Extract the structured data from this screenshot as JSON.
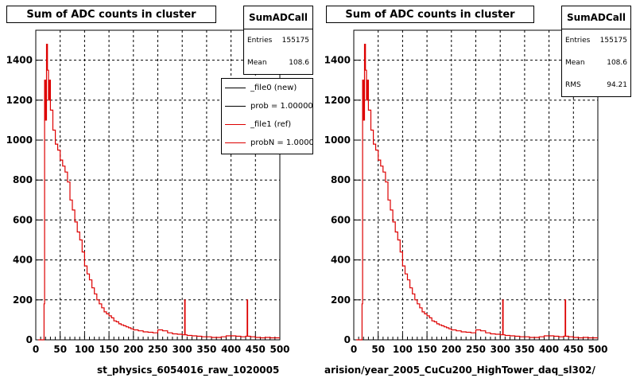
{
  "footer_text": "",
  "chart_data": [
    {
      "type": "line",
      "title": "Sum of ADC counts in cluster",
      "xlabel": "st_physics_6054016_raw_1020005",
      "ylabel": "",
      "xlim": [
        0,
        500
      ],
      "ylim": [
        0,
        1550
      ],
      "grid": true,
      "x_ticks": [
        "0",
        "50",
        "100",
        "150",
        "200",
        "250",
        "300",
        "350",
        "400",
        "450",
        "500"
      ],
      "y_ticks": [
        "0",
        "200",
        "400",
        "600",
        "800",
        "1000",
        "1200",
        "1400"
      ],
      "stats": {
        "name": "SumADCall",
        "rows": [
          {
            "label": "Entries",
            "value": "155175"
          },
          {
            "label": "Mean",
            "value": "108.6"
          }
        ]
      },
      "legend": {
        "placement": "top-right",
        "entries": [
          {
            "label": "_file0 (new)",
            "color": "#000000"
          },
          {
            "label": "prob = 1.000000",
            "color": "#000000"
          },
          {
            "label": "_file1 (ref)",
            "color": "#dd0000"
          },
          {
            "label": "probN = 1.000000",
            "color": "#dd0000"
          }
        ]
      },
      "series": [
        {
          "color": "#dd0000",
          "x": [
            5,
            8,
            10,
            12,
            15,
            17,
            18,
            20,
            22,
            24,
            26,
            28,
            30,
            35,
            40,
            45,
            50,
            55,
            60,
            65,
            70,
            75,
            80,
            85,
            90,
            95,
            100,
            105,
            110,
            115,
            120,
            125,
            130,
            135,
            140,
            145,
            150,
            155,
            160,
            165,
            170,
            175,
            180,
            185,
            190,
            195,
            200,
            210,
            220,
            230,
            240,
            250,
            260,
            270,
            280,
            290,
            300,
            305,
            306,
            310,
            320,
            330,
            340,
            350,
            360,
            370,
            380,
            390,
            400,
            410,
            420,
            430,
            433,
            434,
            440,
            450,
            460,
            470,
            480,
            490,
            500
          ],
          "y": [
            0,
            0,
            0,
            0,
            0,
            180,
            1300,
            1100,
            1480,
            1350,
            1200,
            1300,
            1150,
            1050,
            980,
            950,
            900,
            870,
            840,
            790,
            700,
            650,
            590,
            540,
            500,
            440,
            370,
            330,
            300,
            260,
            230,
            200,
            180,
            160,
            140,
            130,
            120,
            110,
            95,
            90,
            80,
            75,
            70,
            65,
            60,
            55,
            50,
            45,
            40,
            38,
            35,
            50,
            45,
            35,
            30,
            28,
            25,
            200,
            25,
            22,
            20,
            18,
            15,
            15,
            12,
            12,
            15,
            20,
            20,
            18,
            15,
            18,
            200,
            18,
            15,
            12,
            10,
            12,
            10,
            10,
            10
          ]
        }
      ]
    },
    {
      "type": "line",
      "title": "Sum of ADC counts in cluster",
      "xlabel": "arision/year_2005_CuCu200_HighTower_daq_sl302/",
      "ylabel": "",
      "xlim": [
        0,
        500
      ],
      "ylim": [
        0,
        1550
      ],
      "grid": true,
      "x_ticks": [
        "0",
        "50",
        "100",
        "150",
        "200",
        "250",
        "300",
        "350",
        "400",
        "450",
        "500"
      ],
      "y_ticks": [
        "0",
        "200",
        "400",
        "600",
        "800",
        "1000",
        "1200",
        "1400"
      ],
      "stats": {
        "name": "SumADCall",
        "rows": [
          {
            "label": "Entries",
            "value": "155175"
          },
          {
            "label": "Mean",
            "value": "108.6"
          },
          {
            "label": "RMS",
            "value": "94.21"
          }
        ]
      },
      "legend": null,
      "series": [
        {
          "color": "#dd0000",
          "x": [
            5,
            8,
            10,
            12,
            15,
            17,
            18,
            20,
            22,
            24,
            26,
            28,
            30,
            35,
            40,
            45,
            50,
            55,
            60,
            65,
            70,
            75,
            80,
            85,
            90,
            95,
            100,
            105,
            110,
            115,
            120,
            125,
            130,
            135,
            140,
            145,
            150,
            155,
            160,
            165,
            170,
            175,
            180,
            185,
            190,
            195,
            200,
            210,
            220,
            230,
            240,
            250,
            260,
            270,
            280,
            290,
            300,
            305,
            306,
            310,
            320,
            330,
            340,
            350,
            360,
            370,
            380,
            390,
            400,
            410,
            420,
            430,
            433,
            434,
            440,
            450,
            460,
            470,
            480,
            490,
            500
          ],
          "y": [
            0,
            0,
            0,
            0,
            0,
            180,
            1300,
            1100,
            1480,
            1350,
            1200,
            1300,
            1150,
            1050,
            980,
            950,
            900,
            870,
            840,
            790,
            700,
            650,
            590,
            540,
            500,
            440,
            370,
            330,
            300,
            260,
            230,
            200,
            180,
            160,
            140,
            130,
            120,
            110,
            95,
            90,
            80,
            75,
            70,
            65,
            60,
            55,
            50,
            45,
            40,
            38,
            35,
            50,
            45,
            35,
            30,
            28,
            25,
            200,
            25,
            22,
            20,
            18,
            15,
            15,
            12,
            12,
            15,
            20,
            20,
            18,
            15,
            18,
            200,
            18,
            15,
            12,
            10,
            12,
            10,
            10,
            10
          ]
        }
      ]
    }
  ]
}
